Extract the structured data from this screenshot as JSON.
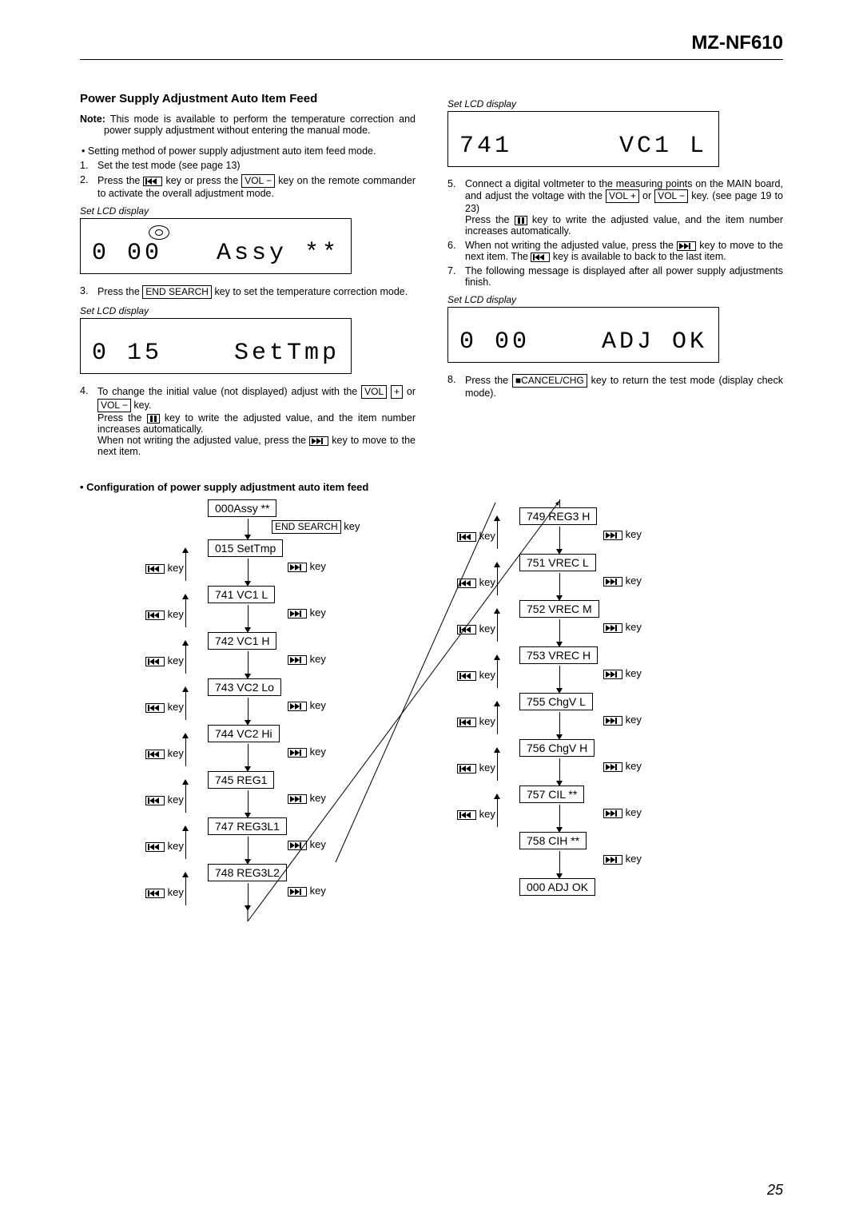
{
  "model": "MZ-NF610",
  "page_number": "25",
  "section": {
    "title": "Power Supply Adjustment Auto Item Feed",
    "note_label": "Note:",
    "note_text": "This mode is available to perform the temperature correction and power supply adjustment without entering the manual mode.",
    "bullet1": "Setting method of power supply adjustment auto item feed mode.",
    "step1": "Set the test mode (see page 13)",
    "step2a": "Press the ",
    "step2b": " key or press the ",
    "step2c": " key on the remote commander to activate the overall adjustment mode.",
    "lcd_label": "Set LCD display",
    "lcd1_left": "0 00",
    "lcd1_right": "Assy **",
    "step3a": "Press the ",
    "step3b": " key to set the temperature correction mode.",
    "lcd2_left": "0 15",
    "lcd2_right": "SetTmp",
    "step4a": "To change the initial value (not displayed) adjust with the ",
    "step4b": " or ",
    "step4c": " key.",
    "step4d": "Press the ",
    "step4e": " key to write the adjusted value, and the item number increases automatically.",
    "step4f": "When not writing the adjusted value, press the ",
    "step4g": " key to move to the next item.",
    "lcd3_left": "741",
    "lcd3_right": "VC1 L",
    "step5a": "Connect a digital voltmeter to the measuring points on the MAIN board, and adjust the voltage with the ",
    "step5b": " or ",
    "step5c": " key. (see page 19 to 23)",
    "step5d": "Press the ",
    "step5e": " key to write the adjusted value, and the item number increases automatically.",
    "step6a": "When not writing the adjusted value, press the ",
    "step6b": " key to move to the next item. The ",
    "step6c": " key is available to back to the last item.",
    "step7": "The following message is displayed after all power supply adjustments finish.",
    "lcd4_left": "0 00",
    "lcd4_right": "ADJ OK",
    "step8a": "Press the ",
    "step8b": " key to return the test mode (display check mode).",
    "config_title": "• Configuration of power supply adjustment auto item feed"
  },
  "keys": {
    "vol_minus": "VOL −",
    "vol_plus": "VOL +",
    "vol": "VOL",
    "plus": "+",
    "end_search": "END SEARCH",
    "cancel_chg": "■CANCEL/CHG",
    "key_word": "key"
  },
  "diagram": {
    "left_nodes": [
      {
        "id": "n0",
        "label": "000Assy  **"
      },
      {
        "id": "n1",
        "label": "015 SetTmp"
      },
      {
        "id": "n2",
        "label": "741 VC1 L"
      },
      {
        "id": "n3",
        "label": "742 VC1 H"
      },
      {
        "id": "n4",
        "label": "743 VC2 Lo"
      },
      {
        "id": "n5",
        "label": "744 VC2 Hi"
      },
      {
        "id": "n6",
        "label": "745 REG1"
      },
      {
        "id": "n7",
        "label": "747 REG3L1"
      },
      {
        "id": "n8",
        "label": "748 REG3L2"
      }
    ],
    "right_nodes": [
      {
        "id": "r0",
        "label": "749 REG3 H"
      },
      {
        "id": "r1",
        "label": "751 VREC L"
      },
      {
        "id": "r2",
        "label": "752 VREC M"
      },
      {
        "id": "r3",
        "label": "753 VREC H"
      },
      {
        "id": "r4",
        "label": "755 ChgV L"
      },
      {
        "id": "r5",
        "label": "756 ChgV H"
      },
      {
        "id": "r6",
        "label": "757 CIL  **"
      },
      {
        "id": "r7",
        "label": "758 CIH  **"
      },
      {
        "id": "r8",
        "label": "000 ADJ OK"
      }
    ],
    "end_search_label": "END SEARCH"
  }
}
